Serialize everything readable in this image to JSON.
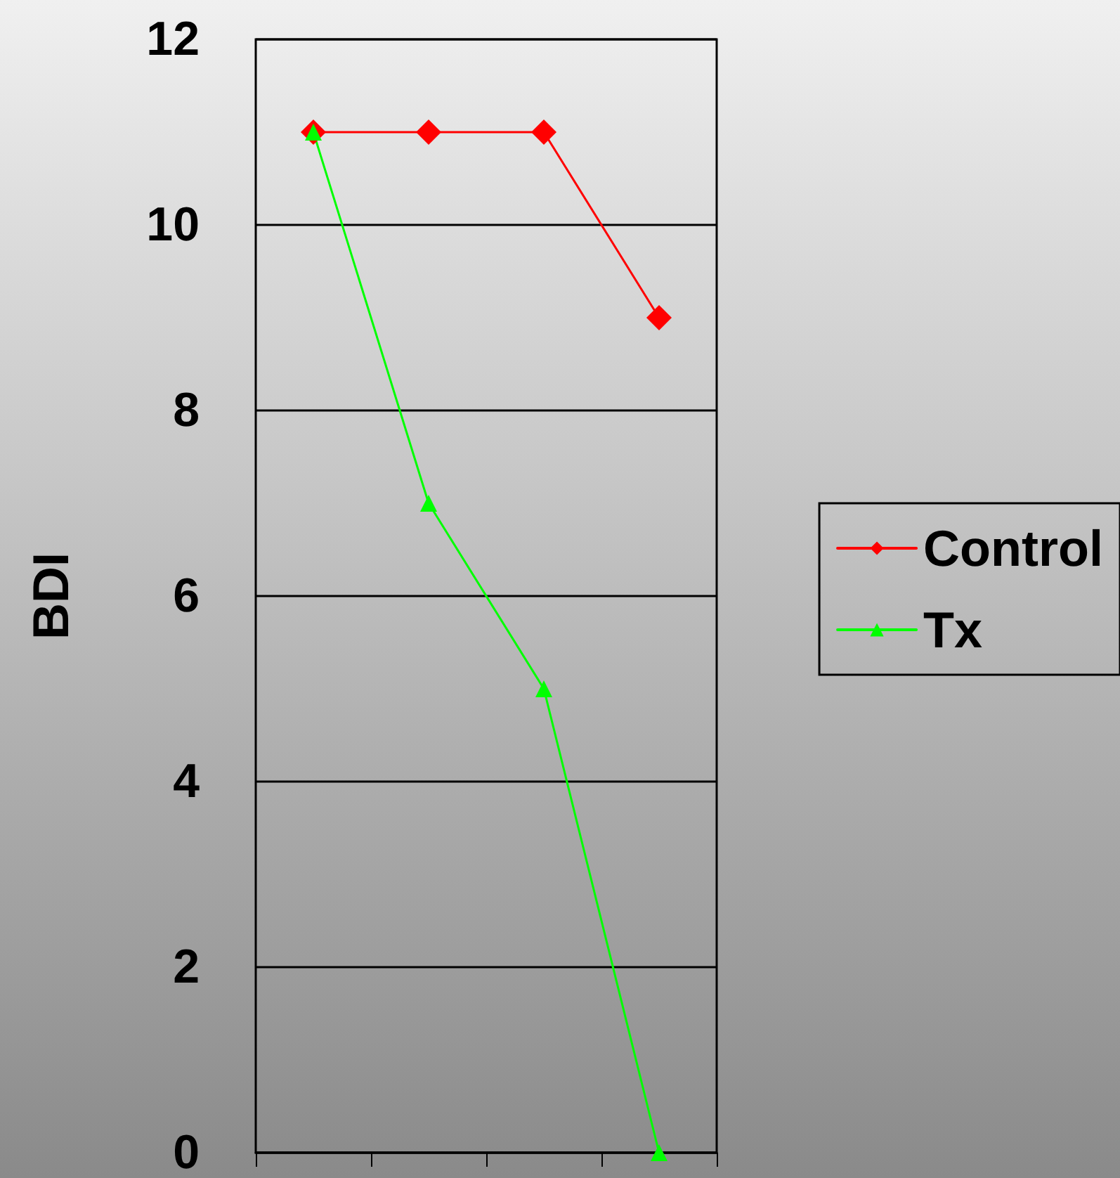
{
  "chart_data": {
    "type": "line",
    "ylabel": "BDI",
    "categories": [
      null,
      null,
      null,
      null
    ],
    "series": [
      {
        "name": "Control",
        "color": "#ff0000",
        "marker": "diamond",
        "values": [
          11,
          11,
          11,
          9
        ]
      },
      {
        "name": "Tx",
        "color": "#00ff00",
        "marker": "triangle",
        "values": [
          11,
          7,
          5,
          0
        ]
      }
    ],
    "ylim": [
      0,
      12
    ],
    "yticks": [
      0,
      2,
      4,
      6,
      8,
      10,
      12
    ],
    "grid": "y",
    "legend": "right",
    "line_style": "solid"
  }
}
